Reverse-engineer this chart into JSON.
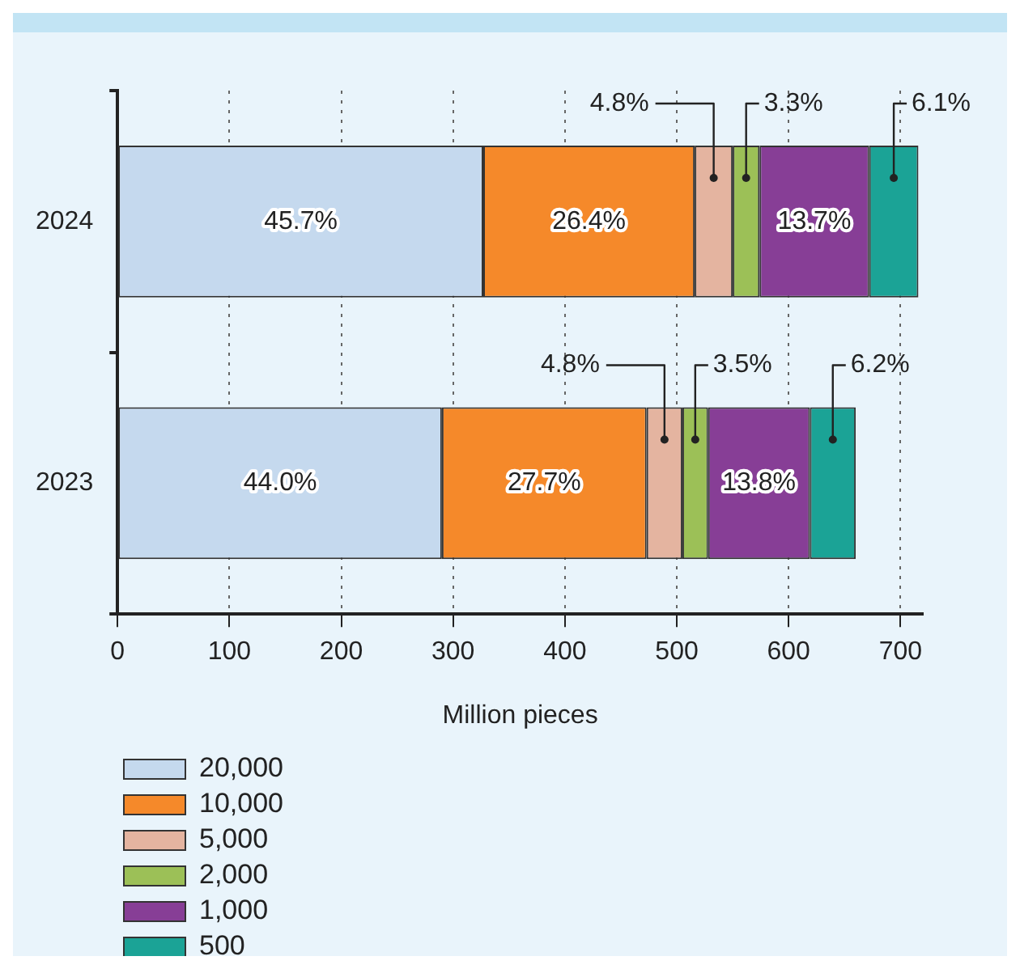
{
  "chart_data": {
    "type": "bar",
    "orientation": "horizontal",
    "stacked": true,
    "categories": [
      "2024",
      "2023"
    ],
    "series": [
      {
        "name": "20,000",
        "color": "#c5d9ee",
        "values": [
          327,
          290
        ]
      },
      {
        "name": "10,000",
        "color": "#f5892a",
        "values": [
          189,
          183
        ]
      },
      {
        "name": "5,000",
        "color": "#e4b4a0",
        "values": [
          34,
          32
        ]
      },
      {
        "name": "2,000",
        "color": "#9cc057",
        "values": [
          24,
          23
        ]
      },
      {
        "name": "1,000",
        "color": "#873e96",
        "values": [
          98,
          91
        ]
      },
      {
        "name": "500",
        "color": "#1ba396",
        "values": [
          44,
          41
        ]
      }
    ],
    "annotations": [
      "45.7%",
      "26.4%",
      "4.8%",
      "3.3%",
      "13.7%",
      "6.1%",
      "44.0%",
      "27.7%",
      "4.8%",
      "3.5%",
      "13.8%",
      "6.2%"
    ],
    "xlabel": "Million pieces",
    "xlim": [
      0,
      720
    ],
    "xticks": [
      0,
      100,
      200,
      300,
      400,
      500,
      600,
      700
    ],
    "grid": "x",
    "legend": "bottom left"
  }
}
